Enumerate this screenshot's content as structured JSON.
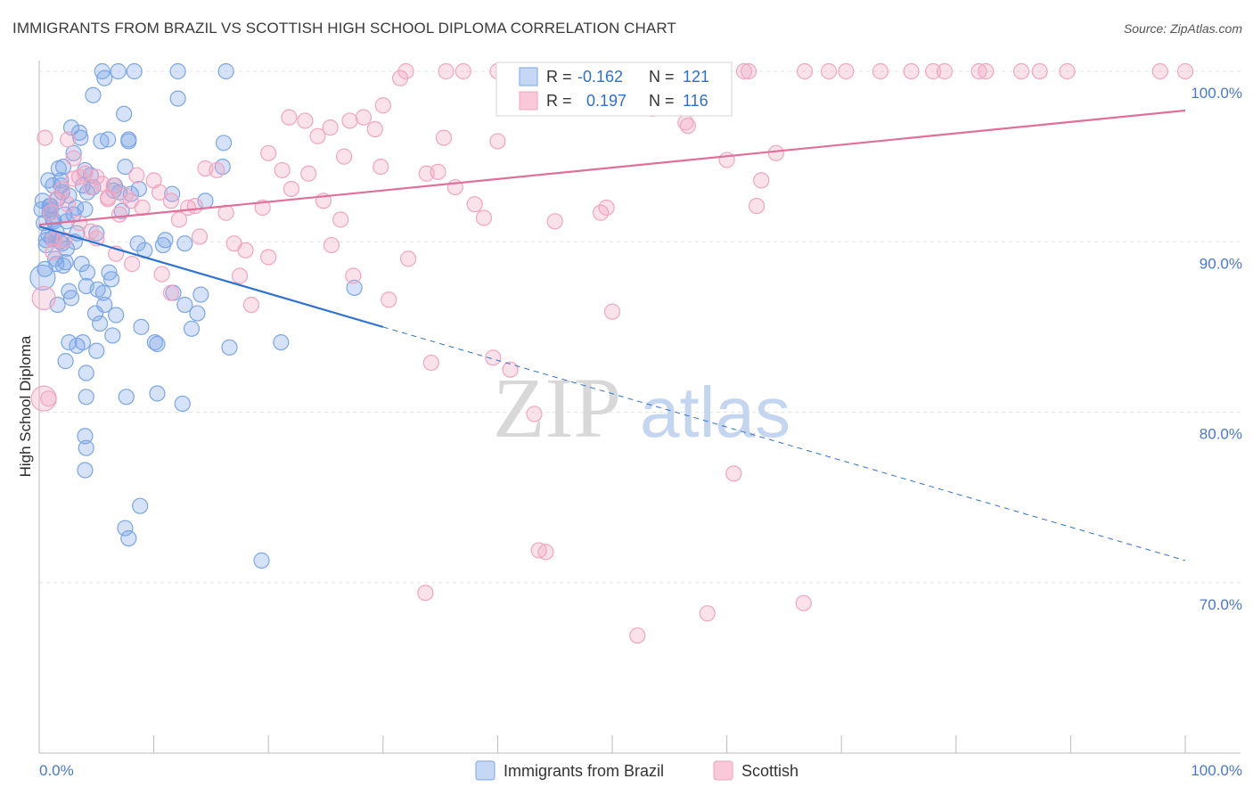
{
  "title": "IMMIGRANTS FROM BRAZIL VS SCOTTISH HIGH SCHOOL DIPLOMA CORRELATION CHART",
  "source": "Source: ZipAtlas.com",
  "watermark": {
    "zip": "ZIP",
    "atlas": "atlas"
  },
  "chart_data": {
    "type": "scatter",
    "xlabel": "",
    "ylabel": "High School Diploma",
    "xlim": [
      0,
      100
    ],
    "ylim": [
      60,
      100
    ],
    "x_tick_labels": {
      "min": "0.0%",
      "max": "100.0%"
    },
    "y_ticks": [
      {
        "value": 100,
        "label": "100.0%"
      },
      {
        "value": 90,
        "label": "90.0%"
      },
      {
        "value": 80,
        "label": "80.0%"
      },
      {
        "value": 70,
        "label": "70.0%"
      }
    ],
    "grid": true,
    "legend_stats": {
      "series1": {
        "r_label": "R =",
        "r": "-0.162",
        "n_label": "N =",
        "n": "121"
      },
      "series2": {
        "r_label": "R =",
        "r": "0.197",
        "n_label": "N =",
        "n": "116"
      }
    },
    "series": [
      {
        "name": "Immigrants from Brazil",
        "color": "#7ba6e6",
        "line_color": "#2f72cf",
        "trend": {
          "x0": 0,
          "y0": 90.9,
          "x1": 30,
          "y1": 85.0,
          "dash_to_x": 100,
          "dash_to_y": 71.3
        },
        "points": [
          [
            0.2,
            91.9
          ],
          [
            0.3,
            92.4
          ],
          [
            0.4,
            91.1
          ],
          [
            0.5,
            88.4
          ],
          [
            0.6,
            90.1
          ],
          [
            0.8,
            93.6
          ],
          [
            0.9,
            91.7
          ],
          [
            1.0,
            92.1
          ],
          [
            1.1,
            90.2
          ],
          [
            1.2,
            91.3
          ],
          [
            1.3,
            90.1
          ],
          [
            1.4,
            89.0
          ],
          [
            1.5,
            88.7
          ],
          [
            1.6,
            92.5
          ],
          [
            1.7,
            94.3
          ],
          [
            1.8,
            90.0
          ],
          [
            1.9,
            93.3
          ],
          [
            2.0,
            92.9
          ],
          [
            2.1,
            94.4
          ],
          [
            2.2,
            91.6
          ],
          [
            2.4,
            89.6
          ],
          [
            2.6,
            92.7
          ],
          [
            2.8,
            96.7
          ],
          [
            3.0,
            95.2
          ],
          [
            3.2,
            92.0
          ],
          [
            3.5,
            96.4
          ],
          [
            3.6,
            96.1
          ],
          [
            3.8,
            93.3
          ],
          [
            4.0,
            94.2
          ],
          [
            4.2,
            92.9
          ],
          [
            4.5,
            93.9
          ],
          [
            4.7,
            93.2
          ],
          [
            5.0,
            90.5
          ],
          [
            5.4,
            95.9
          ],
          [
            6.0,
            96.0
          ],
          [
            6.5,
            93.0
          ],
          [
            7.0,
            92.9
          ],
          [
            7.5,
            94.4
          ],
          [
            7.8,
            95.9
          ],
          [
            8.0,
            92.8
          ],
          [
            3.0,
            91.6
          ],
          [
            2.0,
            89.9
          ],
          [
            3.3,
            90.5
          ],
          [
            4.0,
            91.9
          ],
          [
            4.7,
            98.6
          ],
          [
            5.5,
            100.0
          ],
          [
            6.9,
            100.0
          ],
          [
            8.3,
            100.0
          ],
          [
            12.1,
            100.0
          ],
          [
            16.3,
            100.0
          ],
          [
            7.4,
            97.5
          ],
          [
            5.7,
            99.6
          ],
          [
            12.1,
            98.4
          ],
          [
            7.8,
            96.0
          ],
          [
            11.6,
            92.8
          ],
          [
            12.7,
            89.9
          ],
          [
            8.7,
            93.1
          ],
          [
            11.0,
            90.1
          ],
          [
            16.0,
            94.4
          ],
          [
            16.1,
            95.8
          ],
          [
            14.5,
            92.4
          ],
          [
            10.8,
            89.8
          ],
          [
            8.6,
            89.9
          ],
          [
            6.3,
            87.8
          ],
          [
            2.3,
            88.8
          ],
          [
            4.1,
            87.4
          ],
          [
            1.6,
            86.3
          ],
          [
            2.8,
            86.7
          ],
          [
            3.3,
            83.9
          ],
          [
            4.9,
            85.8
          ],
          [
            5.3,
            85.2
          ],
          [
            5.7,
            86.3
          ],
          [
            6.7,
            85.7
          ],
          [
            8.9,
            85.0
          ],
          [
            10.1,
            84.1
          ],
          [
            10.3,
            84.0
          ],
          [
            13.8,
            85.8
          ],
          [
            14.1,
            86.9
          ],
          [
            12.7,
            86.3
          ],
          [
            2.6,
            84.1
          ],
          [
            3.8,
            84.1
          ],
          [
            5.0,
            83.6
          ],
          [
            2.3,
            83.0
          ],
          [
            4.1,
            82.3
          ],
          [
            4.1,
            80.9
          ],
          [
            7.6,
            80.9
          ],
          [
            10.3,
            81.1
          ],
          [
            12.5,
            80.5
          ],
          [
            16.6,
            83.8
          ],
          [
            21.1,
            84.1
          ],
          [
            27.5,
            87.3
          ],
          [
            4.0,
            78.6
          ],
          [
            4.1,
            77.9
          ],
          [
            4.0,
            76.6
          ],
          [
            8.8,
            74.5
          ],
          [
            7.5,
            73.2
          ],
          [
            7.8,
            72.6
          ],
          [
            19.4,
            71.3
          ],
          [
            1.0,
            91.9
          ],
          [
            1.5,
            90.6
          ],
          [
            2.6,
            87.1
          ],
          [
            0.6,
            89.8
          ],
          [
            4.2,
            88.2
          ],
          [
            5.6,
            87.0
          ],
          [
            6.1,
            88.2
          ],
          [
            0.9,
            92.1
          ],
          [
            1.9,
            93.6
          ],
          [
            2.1,
            88.6
          ],
          [
            6.6,
            93.3
          ],
          [
            1.2,
            93.3
          ],
          [
            3.7,
            88.7
          ],
          [
            5.1,
            87.2
          ],
          [
            9.2,
            89.5
          ],
          [
            11.7,
            87.0
          ],
          [
            13.3,
            84.9
          ],
          [
            3.1,
            90.0
          ],
          [
            2.4,
            91.2
          ],
          [
            0.8,
            90.4
          ],
          [
            1.3,
            91.2
          ],
          [
            7.2,
            91.8
          ],
          [
            6.4,
            84.5
          ]
        ],
        "large_points": [
          [
            0.3,
            87.9,
            14
          ]
        ]
      },
      {
        "name": "Scottish",
        "color": "#f0a5c0",
        "line_color": "#e0709a",
        "trend": {
          "x0": 0,
          "y0": 91.0,
          "x1": 100,
          "y1": 97.7
        },
        "points": [
          [
            1.0,
            91.7
          ],
          [
            1.5,
            92.5
          ],
          [
            2.0,
            93.1
          ],
          [
            2.5,
            92.2
          ],
          [
            3.0,
            93.7
          ],
          [
            3.5,
            93.8
          ],
          [
            4.0,
            94.0
          ],
          [
            4.5,
            93.2
          ],
          [
            5.0,
            93.8
          ],
          [
            5.5,
            93.4
          ],
          [
            6.0,
            92.6
          ],
          [
            6.5,
            93.3
          ],
          [
            7.0,
            91.6
          ],
          [
            7.5,
            92.7
          ],
          [
            8.0,
            92.4
          ],
          [
            8.5,
            93.9
          ],
          [
            9.0,
            92.0
          ],
          [
            10.0,
            93.6
          ],
          [
            10.5,
            92.9
          ],
          [
            11.5,
            92.4
          ],
          [
            12.2,
            91.3
          ],
          [
            13.0,
            92.0
          ],
          [
            13.6,
            92.1
          ],
          [
            14.5,
            94.3
          ],
          [
            15.5,
            94.2
          ],
          [
            16.3,
            91.7
          ],
          [
            17.0,
            89.9
          ],
          [
            18.0,
            89.5
          ],
          [
            19.5,
            92.0
          ],
          [
            20.0,
            95.2
          ],
          [
            21.2,
            94.2
          ],
          [
            22.0,
            93.1
          ],
          [
            23.5,
            94.0
          ],
          [
            24.8,
            92.4
          ],
          [
            26.3,
            91.3
          ],
          [
            27.1,
            97.1
          ],
          [
            28.3,
            97.3
          ],
          [
            29.3,
            96.6
          ],
          [
            30.0,
            98.0
          ],
          [
            31.5,
            99.6
          ],
          [
            32.0,
            100.0
          ],
          [
            35.5,
            100.0
          ],
          [
            37.0,
            100.0
          ],
          [
            40.0,
            100.0
          ],
          [
            41.8,
            100.0
          ],
          [
            43.2,
            100.0
          ],
          [
            45.5,
            100.0
          ],
          [
            48.9,
            100.0
          ],
          [
            50.7,
            100.0
          ],
          [
            55.5,
            100.0
          ],
          [
            58.0,
            100.0
          ],
          [
            61.5,
            100.0
          ],
          [
            61.9,
            100.0
          ],
          [
            66.8,
            100.0
          ],
          [
            68.9,
            100.0
          ],
          [
            70.4,
            100.0
          ],
          [
            73.4,
            100.0
          ],
          [
            76.1,
            100.0
          ],
          [
            78.0,
            100.0
          ],
          [
            79.0,
            100.0
          ],
          [
            82.0,
            100.0
          ],
          [
            82.6,
            100.0
          ],
          [
            85.7,
            100.0
          ],
          [
            87.3,
            100.0
          ],
          [
            89.7,
            100.0
          ],
          [
            97.8,
            100.0
          ],
          [
            100.0,
            100.0
          ],
          [
            23.2,
            97.1
          ],
          [
            24.3,
            96.2
          ],
          [
            25.4,
            96.7
          ],
          [
            26.6,
            95.0
          ],
          [
            21.8,
            97.3
          ],
          [
            29.8,
            94.4
          ],
          [
            33.8,
            94.0
          ],
          [
            34.8,
            94.1
          ],
          [
            35.3,
            96.1
          ],
          [
            36.3,
            93.2
          ],
          [
            38.0,
            92.2
          ],
          [
            38.8,
            91.4
          ],
          [
            40.0,
            95.9
          ],
          [
            45.0,
            91.2
          ],
          [
            49.0,
            91.7
          ],
          [
            49.5,
            92.0
          ],
          [
            53.5,
            97.8
          ],
          [
            56.4,
            97.0
          ],
          [
            56.6,
            96.8
          ],
          [
            60.0,
            94.8
          ],
          [
            62.6,
            92.1
          ],
          [
            63.0,
            93.6
          ],
          [
            64.3,
            95.2
          ],
          [
            1.3,
            90.1
          ],
          [
            2.2,
            90.1
          ],
          [
            3.5,
            91.1
          ],
          [
            4.5,
            90.6
          ],
          [
            5.0,
            90.2
          ],
          [
            6.0,
            92.5
          ],
          [
            6.7,
            89.3
          ],
          [
            8.1,
            88.7
          ],
          [
            10.7,
            88.1
          ],
          [
            11.5,
            87.0
          ],
          [
            14.0,
            90.3
          ],
          [
            17.5,
            88.0
          ],
          [
            18.5,
            86.3
          ],
          [
            20.0,
            89.1
          ],
          [
            25.5,
            89.8
          ],
          [
            27.4,
            88.0
          ],
          [
            30.5,
            86.6
          ],
          [
            32.2,
            89.0
          ],
          [
            34.2,
            82.9
          ],
          [
            39.6,
            83.2
          ],
          [
            41.1,
            82.5
          ],
          [
            43.2,
            79.9
          ],
          [
            50.0,
            85.9
          ],
          [
            60.6,
            76.4
          ],
          [
            33.7,
            69.4
          ],
          [
            43.6,
            71.9
          ],
          [
            44.2,
            71.8
          ],
          [
            52.2,
            66.9
          ],
          [
            58.3,
            68.2
          ],
          [
            66.7,
            68.8
          ],
          [
            0.5,
            96.1
          ],
          [
            3.0,
            94.9
          ],
          [
            1.2,
            89.4
          ],
          [
            0.8,
            80.8
          ],
          [
            2.5,
            96.0
          ]
        ],
        "large_points": [
          [
            0.4,
            86.7,
            13
          ],
          [
            0.4,
            80.8,
            14
          ]
        ]
      }
    ]
  },
  "legend_labels": [
    "Immigrants from Brazil",
    "Scottish"
  ]
}
